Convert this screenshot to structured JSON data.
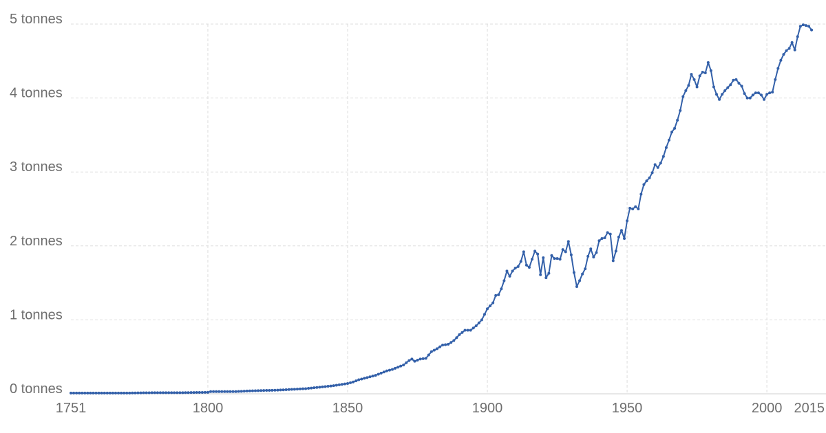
{
  "chart_data": {
    "type": "line",
    "title": "",
    "xlabel": "",
    "ylabel": "",
    "xlim": [
      1751,
      2015
    ],
    "ylim": [
      0,
      5
    ],
    "x_ticks": [
      1751,
      1800,
      1850,
      1900,
      1950,
      2000,
      2015
    ],
    "x_tick_labels": [
      "1751",
      "1800",
      "1850",
      "1900",
      "1950",
      "2000",
      "2015"
    ],
    "y_ticks": [
      0,
      1,
      2,
      3,
      4,
      5
    ],
    "y_tick_labels": [
      "0 tonnes",
      "1 tonnes",
      "2 tonnes",
      "3 tonnes",
      "4 tonnes",
      "5 tonnes"
    ],
    "grid": true,
    "colors": {
      "series": "#3360a9",
      "grid": "#dddddd",
      "tick_text": "#6e6e6e"
    },
    "series": [
      {
        "points": [
          [
            1751,
            0.01
          ],
          [
            1760,
            0.01
          ],
          [
            1770,
            0.01
          ],
          [
            1780,
            0.015
          ],
          [
            1790,
            0.015
          ],
          [
            1800,
            0.02
          ],
          [
            1801,
            0.03
          ],
          [
            1810,
            0.03
          ],
          [
            1815,
            0.04
          ],
          [
            1820,
            0.045
          ],
          [
            1825,
            0.05
          ],
          [
            1830,
            0.06
          ],
          [
            1835,
            0.07
          ],
          [
            1840,
            0.09
          ],
          [
            1845,
            0.11
          ],
          [
            1850,
            0.14
          ],
          [
            1852,
            0.16
          ],
          [
            1854,
            0.19
          ],
          [
            1856,
            0.21
          ],
          [
            1858,
            0.23
          ],
          [
            1860,
            0.25
          ],
          [
            1862,
            0.28
          ],
          [
            1864,
            0.31
          ],
          [
            1866,
            0.33
          ],
          [
            1868,
            0.36
          ],
          [
            1870,
            0.39
          ],
          [
            1872,
            0.45
          ],
          [
            1873,
            0.47
          ],
          [
            1874,
            0.44
          ],
          [
            1876,
            0.47
          ],
          [
            1878,
            0.48
          ],
          [
            1880,
            0.57
          ],
          [
            1882,
            0.61
          ],
          [
            1884,
            0.66
          ],
          [
            1886,
            0.67
          ],
          [
            1888,
            0.72
          ],
          [
            1890,
            0.8
          ],
          [
            1892,
            0.86
          ],
          [
            1894,
            0.86
          ],
          [
            1896,
            0.92
          ],
          [
            1898,
            1.0
          ],
          [
            1900,
            1.15
          ],
          [
            1901,
            1.19
          ],
          [
            1902,
            1.23
          ],
          [
            1903,
            1.33
          ],
          [
            1904,
            1.34
          ],
          [
            1905,
            1.42
          ],
          [
            1906,
            1.53
          ],
          [
            1907,
            1.66
          ],
          [
            1908,
            1.59
          ],
          [
            1909,
            1.66
          ],
          [
            1910,
            1.7
          ],
          [
            1911,
            1.72
          ],
          [
            1912,
            1.79
          ],
          [
            1913,
            1.92
          ],
          [
            1914,
            1.74
          ],
          [
            1915,
            1.71
          ],
          [
            1916,
            1.82
          ],
          [
            1917,
            1.93
          ],
          [
            1918,
            1.89
          ],
          [
            1919,
            1.61
          ],
          [
            1920,
            1.84
          ],
          [
            1921,
            1.57
          ],
          [
            1922,
            1.63
          ],
          [
            1923,
            1.87
          ],
          [
            1924,
            1.83
          ],
          [
            1925,
            1.83
          ],
          [
            1926,
            1.82
          ],
          [
            1927,
            1.95
          ],
          [
            1928,
            1.92
          ],
          [
            1929,
            2.06
          ],
          [
            1930,
            1.88
          ],
          [
            1931,
            1.64
          ],
          [
            1932,
            1.45
          ],
          [
            1933,
            1.53
          ],
          [
            1934,
            1.62
          ],
          [
            1935,
            1.69
          ],
          [
            1936,
            1.86
          ],
          [
            1937,
            1.96
          ],
          [
            1938,
            1.85
          ],
          [
            1939,
            1.91
          ],
          [
            1940,
            2.07
          ],
          [
            1941,
            2.1
          ],
          [
            1942,
            2.11
          ],
          [
            1943,
            2.18
          ],
          [
            1944,
            2.16
          ],
          [
            1945,
            1.8
          ],
          [
            1946,
            1.93
          ],
          [
            1947,
            2.12
          ],
          [
            1948,
            2.21
          ],
          [
            1949,
            2.1
          ],
          [
            1950,
            2.34
          ],
          [
            1951,
            2.51
          ],
          [
            1952,
            2.5
          ],
          [
            1953,
            2.53
          ],
          [
            1954,
            2.5
          ],
          [
            1955,
            2.7
          ],
          [
            1956,
            2.83
          ],
          [
            1957,
            2.88
          ],
          [
            1958,
            2.92
          ],
          [
            1959,
            2.99
          ],
          [
            1960,
            3.1
          ],
          [
            1961,
            3.06
          ],
          [
            1962,
            3.12
          ],
          [
            1963,
            3.21
          ],
          [
            1964,
            3.33
          ],
          [
            1965,
            3.43
          ],
          [
            1966,
            3.54
          ],
          [
            1967,
            3.59
          ],
          [
            1968,
            3.7
          ],
          [
            1969,
            3.83
          ],
          [
            1970,
            4.02
          ],
          [
            1971,
            4.1
          ],
          [
            1972,
            4.17
          ],
          [
            1973,
            4.32
          ],
          [
            1974,
            4.25
          ],
          [
            1975,
            4.15
          ],
          [
            1976,
            4.3
          ],
          [
            1977,
            4.35
          ],
          [
            1978,
            4.34
          ],
          [
            1979,
            4.48
          ],
          [
            1980,
            4.37
          ],
          [
            1981,
            4.15
          ],
          [
            1982,
            4.05
          ],
          [
            1983,
            3.98
          ],
          [
            1984,
            4.05
          ],
          [
            1985,
            4.1
          ],
          [
            1986,
            4.14
          ],
          [
            1987,
            4.18
          ],
          [
            1988,
            4.24
          ],
          [
            1989,
            4.25
          ],
          [
            1990,
            4.2
          ],
          [
            1991,
            4.16
          ],
          [
            1992,
            4.06
          ],
          [
            1993,
            4.0
          ],
          [
            1994,
            4.0
          ],
          [
            1995,
            4.04
          ],
          [
            1996,
            4.07
          ],
          [
            1997,
            4.07
          ],
          [
            1998,
            4.04
          ],
          [
            1999,
            3.98
          ],
          [
            2000,
            4.05
          ],
          [
            2001,
            4.07
          ],
          [
            2002,
            4.08
          ],
          [
            2003,
            4.25
          ],
          [
            2004,
            4.4
          ],
          [
            2005,
            4.51
          ],
          [
            2006,
            4.59
          ],
          [
            2007,
            4.64
          ],
          [
            2008,
            4.67
          ],
          [
            2009,
            4.75
          ],
          [
            2010,
            4.65
          ],
          [
            2011,
            4.83
          ],
          [
            2012,
            4.97
          ],
          [
            2013,
            4.99
          ],
          [
            2014,
            4.98
          ],
          [
            2015,
            4.97
          ],
          [
            2016,
            4.92
          ]
        ]
      }
    ]
  }
}
